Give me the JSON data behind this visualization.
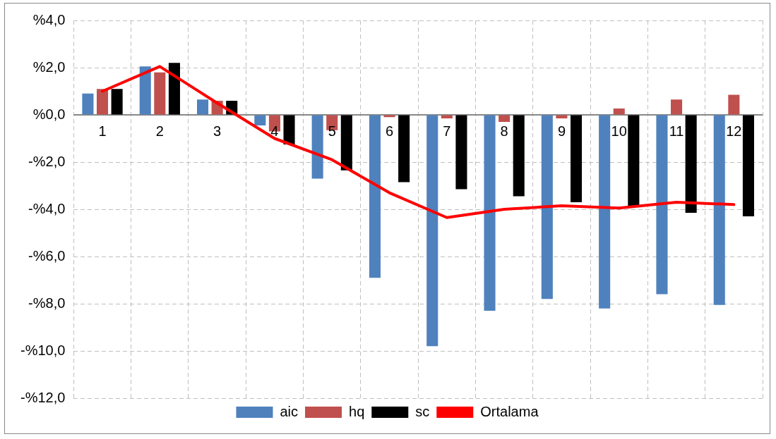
{
  "chart_data": {
    "type": "bar",
    "categories": [
      "1",
      "2",
      "3",
      "4",
      "5",
      "6",
      "7",
      "8",
      "9",
      "10",
      "11",
      "12"
    ],
    "series": [
      {
        "name": "aic",
        "color": "#4f81bd",
        "values": [
          0.9,
          2.05,
          0.65,
          -0.45,
          -2.7,
          -6.9,
          -9.8,
          -8.3,
          -7.8,
          -8.2,
          -7.6,
          -8.05
        ]
      },
      {
        "name": "hq",
        "color": "#c0504d",
        "values": [
          1.1,
          1.8,
          0.6,
          -0.7,
          -0.65,
          -0.1,
          -0.15,
          -0.3,
          -0.15,
          0.27,
          0.65,
          0.85
        ]
      },
      {
        "name": "sc",
        "color": "#000000",
        "values": [
          1.1,
          2.2,
          0.6,
          -1.25,
          -2.35,
          -2.85,
          -3.15,
          -3.45,
          -3.7,
          -3.85,
          -4.15,
          -4.3
        ]
      },
      {
        "name": "Ortalama",
        "type": "line",
        "color": "#ff0000",
        "values": [
          1.0,
          2.05,
          0.5,
          -1.0,
          -1.9,
          -3.3,
          -4.35,
          -4.0,
          -3.85,
          -3.95,
          -3.7,
          -3.8
        ]
      }
    ],
    "ylim": [
      -12,
      4
    ],
    "yticks": [
      {
        "value": 4,
        "label": "%4,0"
      },
      {
        "value": 2,
        "label": "%2,0"
      },
      {
        "value": 0,
        "label": "%0,0"
      },
      {
        "value": -2,
        "label": "-%2,0"
      },
      {
        "value": -4,
        "label": "-%4,0"
      },
      {
        "value": -6,
        "label": "-%6,0"
      },
      {
        "value": -8,
        "label": "-%8,0"
      },
      {
        "value": -10,
        "label": "-%10,0"
      },
      {
        "value": -12,
        "label": "-%12,0"
      }
    ],
    "grid": true,
    "legend": "bottom",
    "marker": "none",
    "line_style": "solid"
  }
}
